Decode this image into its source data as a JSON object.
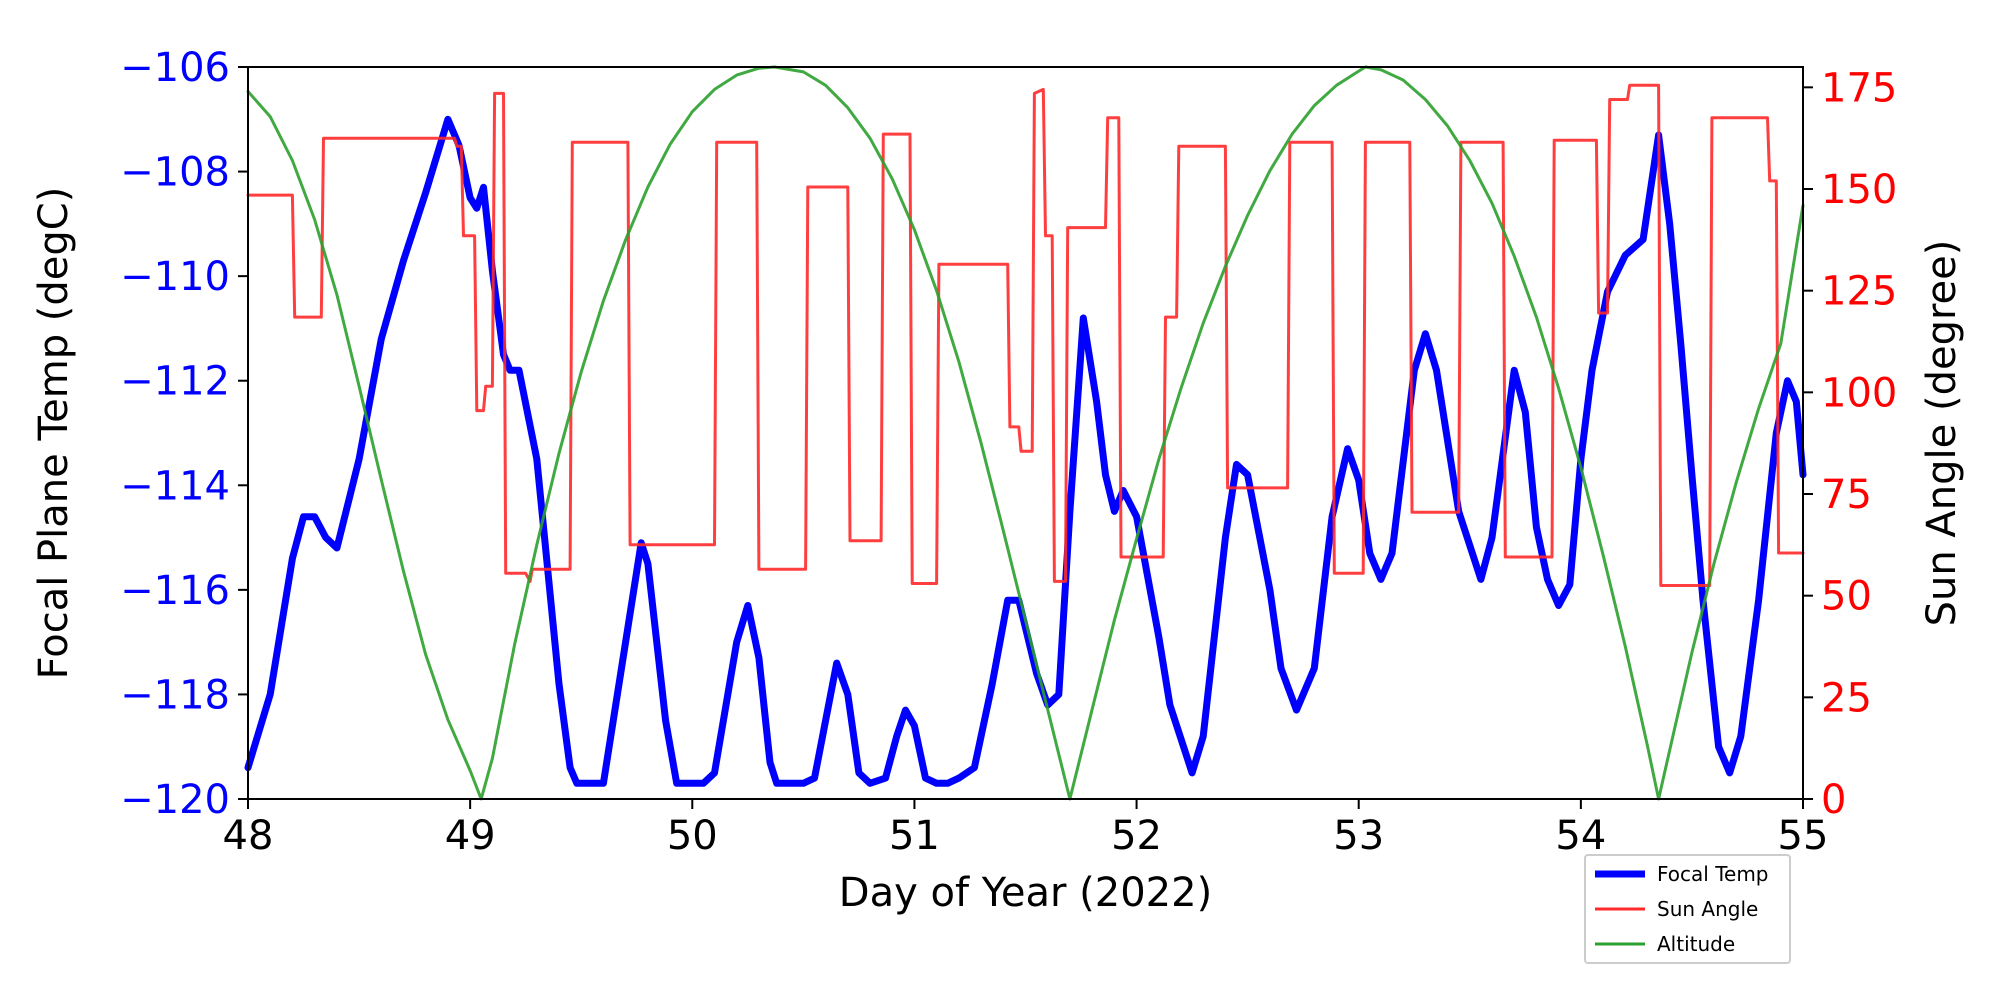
{
  "chart_data": {
    "type": "line",
    "xlabel": "Day of Year (2022)",
    "ylabel_left": "Focal Plane Temp (degC)",
    "ylabel_right": "Sun Angle (degree)",
    "xlim": [
      48,
      55
    ],
    "ylim_left": [
      -120,
      -106
    ],
    "ylim_right": [
      0,
      180
    ],
    "x_ticks": [
      48,
      49,
      50,
      51,
      52,
      53,
      54,
      55
    ],
    "y_left_ticks": [
      -120,
      -118,
      -116,
      -114,
      -112,
      -110,
      -108,
      -106
    ],
    "y_right_ticks": [
      0,
      25,
      50,
      75,
      100,
      125,
      150,
      175
    ],
    "colors": {
      "focal": "#0000ff",
      "sun": "#ff2a2a",
      "alt": "#2ca02c",
      "left_ticks": "#0000ff",
      "right_ticks": "#ff0000"
    },
    "legend": {
      "position": "lower-right",
      "entries": [
        {
          "label": "Focal Temp",
          "series": "focal"
        },
        {
          "label": "Sun Angle",
          "series": "sun"
        },
        {
          "label": "Altitude",
          "series": "alt"
        }
      ]
    },
    "series": [
      {
        "name": "Focal Temp",
        "key": "focal",
        "axis": "left",
        "points": [
          [
            48.0,
            -119.4
          ],
          [
            48.1,
            -118.0
          ],
          [
            48.2,
            -115.4
          ],
          [
            48.25,
            -114.6
          ],
          [
            48.3,
            -114.6
          ],
          [
            48.35,
            -115.0
          ],
          [
            48.4,
            -115.2
          ],
          [
            48.5,
            -113.5
          ],
          [
            48.6,
            -111.2
          ],
          [
            48.7,
            -109.7
          ],
          [
            48.8,
            -108.4
          ],
          [
            48.9,
            -107.0
          ],
          [
            48.95,
            -107.5
          ],
          [
            49.0,
            -108.5
          ],
          [
            49.03,
            -108.7
          ],
          [
            49.06,
            -108.3
          ],
          [
            49.1,
            -109.9
          ],
          [
            49.15,
            -111.5
          ],
          [
            49.18,
            -111.8
          ],
          [
            49.22,
            -111.8
          ],
          [
            49.3,
            -113.5
          ],
          [
            49.4,
            -117.8
          ],
          [
            49.45,
            -119.4
          ],
          [
            49.48,
            -119.7
          ],
          [
            49.6,
            -119.7
          ],
          [
            49.7,
            -117.0
          ],
          [
            49.77,
            -115.1
          ],
          [
            49.8,
            -115.5
          ],
          [
            49.88,
            -118.5
          ],
          [
            49.93,
            -119.7
          ],
          [
            50.05,
            -119.7
          ],
          [
            50.1,
            -119.5
          ],
          [
            50.2,
            -117.0
          ],
          [
            50.25,
            -116.3
          ],
          [
            50.3,
            -117.3
          ],
          [
            50.35,
            -119.3
          ],
          [
            50.38,
            -119.7
          ],
          [
            50.5,
            -119.7
          ],
          [
            50.55,
            -119.6
          ],
          [
            50.6,
            -118.5
          ],
          [
            50.65,
            -117.4
          ],
          [
            50.7,
            -118.0
          ],
          [
            50.75,
            -119.5
          ],
          [
            50.8,
            -119.7
          ],
          [
            50.87,
            -119.6
          ],
          [
            50.92,
            -118.8
          ],
          [
            50.96,
            -118.3
          ],
          [
            51.0,
            -118.6
          ],
          [
            51.05,
            -119.6
          ],
          [
            51.1,
            -119.7
          ],
          [
            51.15,
            -119.7
          ],
          [
            51.2,
            -119.6
          ],
          [
            51.27,
            -119.4
          ],
          [
            51.35,
            -117.8
          ],
          [
            51.42,
            -116.2
          ],
          [
            51.47,
            -116.2
          ],
          [
            51.55,
            -117.6
          ],
          [
            51.6,
            -118.2
          ],
          [
            51.65,
            -118.0
          ],
          [
            51.7,
            -114.5
          ],
          [
            51.76,
            -110.8
          ],
          [
            51.82,
            -112.4
          ],
          [
            51.86,
            -113.8
          ],
          [
            51.9,
            -114.5
          ],
          [
            51.94,
            -114.1
          ],
          [
            52.0,
            -114.6
          ],
          [
            52.1,
            -116.9
          ],
          [
            52.15,
            -118.2
          ],
          [
            52.25,
            -119.5
          ],
          [
            52.3,
            -118.8
          ],
          [
            52.4,
            -115.0
          ],
          [
            52.45,
            -113.6
          ],
          [
            52.5,
            -113.8
          ],
          [
            52.6,
            -116.0
          ],
          [
            52.65,
            -117.5
          ],
          [
            52.72,
            -118.3
          ],
          [
            52.8,
            -117.5
          ],
          [
            52.88,
            -114.6
          ],
          [
            52.95,
            -113.3
          ],
          [
            53.0,
            -113.9
          ],
          [
            53.05,
            -115.3
          ],
          [
            53.1,
            -115.8
          ],
          [
            53.15,
            -115.3
          ],
          [
            53.25,
            -111.8
          ],
          [
            53.3,
            -111.1
          ],
          [
            53.35,
            -111.8
          ],
          [
            53.45,
            -114.5
          ],
          [
            53.55,
            -115.8
          ],
          [
            53.6,
            -115.0
          ],
          [
            53.7,
            -111.8
          ],
          [
            53.75,
            -112.6
          ],
          [
            53.8,
            -114.8
          ],
          [
            53.85,
            -115.8
          ],
          [
            53.9,
            -116.3
          ],
          [
            53.95,
            -115.9
          ],
          [
            54.0,
            -113.5
          ],
          [
            54.05,
            -111.8
          ],
          [
            54.12,
            -110.3
          ],
          [
            54.2,
            -109.6
          ],
          [
            54.28,
            -109.3
          ],
          [
            54.35,
            -107.3
          ],
          [
            54.4,
            -109.0
          ],
          [
            54.45,
            -111.3
          ],
          [
            54.5,
            -113.8
          ],
          [
            54.55,
            -116.2
          ],
          [
            54.62,
            -119.0
          ],
          [
            54.67,
            -119.5
          ],
          [
            54.72,
            -118.8
          ],
          [
            54.8,
            -116.2
          ],
          [
            54.88,
            -113.0
          ],
          [
            54.93,
            -112.0
          ],
          [
            54.97,
            -112.4
          ],
          [
            55.0,
            -113.8
          ]
        ]
      },
      {
        "name": "Sun Angle",
        "key": "sun",
        "axis": "right",
        "points": [
          [
            48.0,
            148.5
          ],
          [
            48.2,
            148.5
          ],
          [
            48.21,
            118.5
          ],
          [
            48.33,
            118.5
          ],
          [
            48.34,
            162.5
          ],
          [
            48.93,
            162.5
          ],
          [
            48.94,
            160.5
          ],
          [
            48.96,
            160.5
          ],
          [
            48.97,
            138.5
          ],
          [
            49.02,
            138.5
          ],
          [
            49.03,
            95.5
          ],
          [
            49.06,
            95.5
          ],
          [
            49.07,
            101.5
          ],
          [
            49.1,
            101.5
          ],
          [
            49.11,
            173.5
          ],
          [
            49.15,
            173.5
          ],
          [
            49.16,
            55.5
          ],
          [
            49.25,
            55.5
          ],
          [
            49.27,
            53.5
          ],
          [
            49.28,
            56.5
          ],
          [
            49.45,
            56.5
          ],
          [
            49.46,
            161.5
          ],
          [
            49.71,
            161.5
          ],
          [
            49.72,
            62.5
          ],
          [
            50.1,
            62.5
          ],
          [
            50.11,
            161.5
          ],
          [
            50.29,
            161.5
          ],
          [
            50.3,
            56.5
          ],
          [
            50.51,
            56.5
          ],
          [
            50.52,
            150.5
          ],
          [
            50.7,
            150.5
          ],
          [
            50.71,
            63.5
          ],
          [
            50.85,
            63.5
          ],
          [
            50.86,
            163.5
          ],
          [
            50.98,
            163.5
          ],
          [
            50.99,
            53.0
          ],
          [
            51.1,
            53.0
          ],
          [
            51.11,
            131.5
          ],
          [
            51.42,
            131.5
          ],
          [
            51.43,
            91.5
          ],
          [
            51.47,
            91.5
          ],
          [
            51.48,
            85.5
          ],
          [
            51.53,
            85.5
          ],
          [
            51.54,
            173.5
          ],
          [
            51.58,
            174.5
          ],
          [
            51.59,
            138.5
          ],
          [
            51.62,
            138.5
          ],
          [
            51.63,
            53.5
          ],
          [
            51.68,
            53.5
          ],
          [
            51.69,
            140.5
          ],
          [
            51.86,
            140.5
          ],
          [
            51.87,
            167.5
          ],
          [
            51.92,
            167.5
          ],
          [
            51.93,
            59.5
          ],
          [
            52.12,
            59.5
          ],
          [
            52.13,
            118.5
          ],
          [
            52.18,
            118.5
          ],
          [
            52.19,
            160.5
          ],
          [
            52.4,
            160.5
          ],
          [
            52.41,
            76.5
          ],
          [
            52.68,
            76.5
          ],
          [
            52.69,
            161.5
          ],
          [
            52.88,
            161.5
          ],
          [
            52.89,
            55.5
          ],
          [
            53.02,
            55.5
          ],
          [
            53.03,
            161.5
          ],
          [
            53.23,
            161.5
          ],
          [
            53.24,
            70.5
          ],
          [
            53.45,
            70.5
          ],
          [
            53.46,
            161.5
          ],
          [
            53.65,
            161.5
          ],
          [
            53.66,
            59.5
          ],
          [
            53.87,
            59.5
          ],
          [
            53.88,
            162.0
          ],
          [
            54.07,
            162.0
          ],
          [
            54.08,
            119.5
          ],
          [
            54.12,
            119.5
          ],
          [
            54.13,
            172.0
          ],
          [
            54.21,
            172.0
          ],
          [
            54.22,
            175.5
          ],
          [
            54.35,
            175.5
          ],
          [
            54.36,
            52.5
          ],
          [
            54.58,
            52.5
          ],
          [
            54.59,
            167.5
          ],
          [
            54.84,
            167.5
          ],
          [
            54.85,
            152.0
          ],
          [
            54.88,
            152.0
          ],
          [
            54.89,
            60.5
          ],
          [
            55.0,
            60.5
          ]
        ]
      },
      {
        "name": "Altitude",
        "key": "alt",
        "axis": "right",
        "points": [
          [
            48.0,
            174.0
          ],
          [
            48.1,
            167.8
          ],
          [
            48.2,
            157.0
          ],
          [
            48.3,
            142.5
          ],
          [
            48.4,
            124.0
          ],
          [
            48.5,
            101.5
          ],
          [
            48.6,
            78.5
          ],
          [
            48.7,
            56.0
          ],
          [
            48.8,
            35.5
          ],
          [
            48.9,
            19.5
          ],
          [
            49.0,
            7.0
          ],
          [
            49.05,
            0.0
          ],
          [
            49.1,
            10.0
          ],
          [
            49.2,
            38.0
          ],
          [
            49.3,
            62.5
          ],
          [
            49.4,
            85.0
          ],
          [
            49.5,
            105.0
          ],
          [
            49.6,
            122.5
          ],
          [
            49.7,
            137.5
          ],
          [
            49.8,
            150.5
          ],
          [
            49.9,
            161.0
          ],
          [
            50.0,
            169.0
          ],
          [
            50.1,
            174.5
          ],
          [
            50.2,
            178.0
          ],
          [
            50.3,
            179.7
          ],
          [
            50.37,
            180.0
          ],
          [
            50.5,
            178.8
          ],
          [
            50.6,
            175.5
          ],
          [
            50.7,
            170.0
          ],
          [
            50.8,
            162.5
          ],
          [
            50.9,
            152.5
          ],
          [
            51.0,
            140.0
          ],
          [
            51.1,
            125.0
          ],
          [
            51.2,
            107.5
          ],
          [
            51.3,
            87.5
          ],
          [
            51.4,
            66.0
          ],
          [
            51.5,
            44.0
          ],
          [
            51.6,
            22.0
          ],
          [
            51.7,
            0.0
          ],
          [
            51.8,
            22.0
          ],
          [
            51.9,
            44.0
          ],
          [
            52.0,
            64.0
          ],
          [
            52.1,
            83.5
          ],
          [
            52.2,
            101.0
          ],
          [
            52.3,
            117.0
          ],
          [
            52.4,
            131.0
          ],
          [
            52.5,
            143.5
          ],
          [
            52.6,
            154.5
          ],
          [
            52.7,
            163.5
          ],
          [
            52.8,
            170.5
          ],
          [
            52.9,
            175.5
          ],
          [
            53.0,
            179.0
          ],
          [
            53.03,
            180.0
          ],
          [
            53.1,
            179.3
          ],
          [
            53.2,
            176.8
          ],
          [
            53.3,
            172.0
          ],
          [
            53.4,
            165.5
          ],
          [
            53.5,
            157.0
          ],
          [
            53.6,
            146.5
          ],
          [
            53.7,
            133.5
          ],
          [
            53.8,
            118.5
          ],
          [
            53.9,
            101.0
          ],
          [
            54.0,
            81.5
          ],
          [
            54.1,
            60.0
          ],
          [
            54.2,
            37.5
          ],
          [
            54.3,
            13.0
          ],
          [
            54.35,
            0.0
          ],
          [
            54.4,
            12.0
          ],
          [
            54.5,
            36.0
          ],
          [
            54.6,
            58.0
          ],
          [
            54.7,
            78.0
          ],
          [
            54.8,
            96.0
          ],
          [
            54.9,
            112.0
          ],
          [
            55.0,
            146.0
          ]
        ]
      }
    ]
  }
}
